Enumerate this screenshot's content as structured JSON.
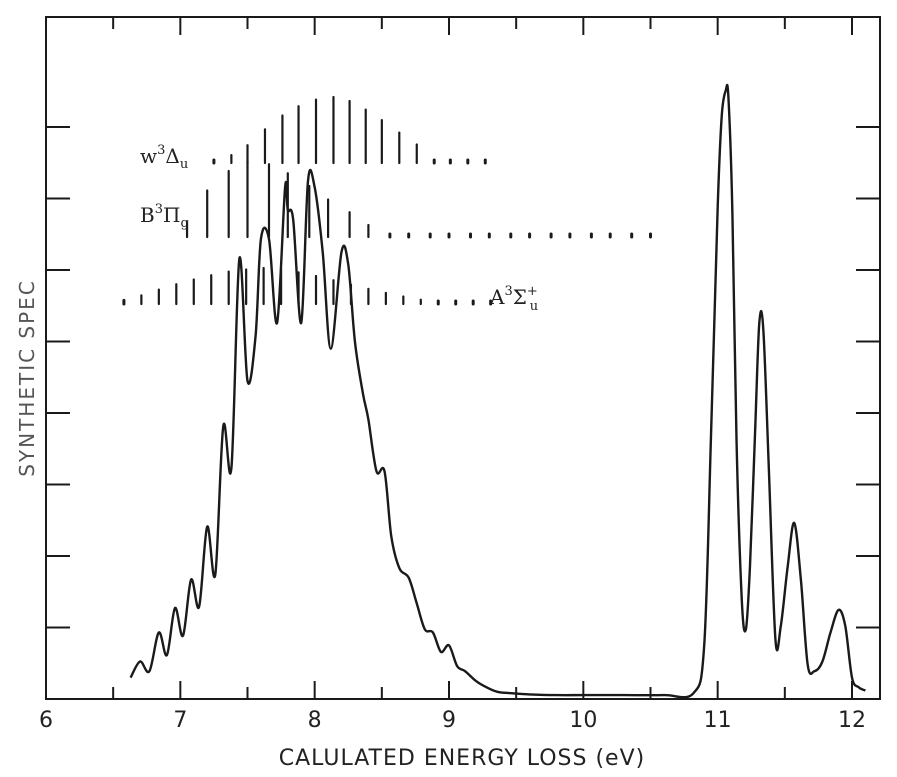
{
  "chart_data": {
    "type": "line",
    "title": "",
    "xlabel": "CALULATED ENERGY LOSS (eV)",
    "ylabel": "SYNTHETIC SPEC",
    "xlim": [
      6,
      12.2
    ],
    "ylim": [
      0,
      1
    ],
    "x_ticks": [
      "6",
      "7",
      "8",
      "9",
      "10",
      "11",
      "12"
    ],
    "grid": false,
    "color": "#1a1a1a",
    "series": [
      {
        "x": [
          6.63,
          6.7,
          6.77,
          6.84,
          6.9,
          6.96,
          7.02,
          7.08,
          7.14,
          7.2,
          7.26,
          7.32,
          7.38,
          7.44,
          7.5,
          7.56,
          7.6,
          7.66,
          7.72,
          7.78,
          7.8,
          7.84,
          7.9,
          7.95,
          8.0,
          8.06,
          8.12,
          8.2,
          8.25,
          8.3,
          8.36,
          8.4,
          8.46,
          8.52,
          8.57,
          8.63,
          8.7,
          8.76,
          8.82,
          8.88,
          8.94,
          9.0,
          9.06,
          9.12,
          9.2,
          9.28,
          9.36,
          9.45,
          9.6,
          9.8,
          10.0,
          10.3,
          10.6,
          10.82,
          10.9,
          10.95,
          11.0,
          11.03,
          11.06,
          11.08,
          11.11,
          11.14,
          11.18,
          11.21,
          11.24,
          11.28,
          11.31,
          11.34,
          11.38,
          11.43,
          11.47,
          11.52,
          11.57,
          11.62,
          11.67,
          11.72,
          11.78,
          11.84,
          11.9,
          11.95,
          12.0,
          12.05,
          12.1
        ],
        "y": [
          0.03,
          0.055,
          0.04,
          0.1,
          0.065,
          0.138,
          0.095,
          0.182,
          0.14,
          0.264,
          0.19,
          0.42,
          0.355,
          0.68,
          0.49,
          0.56,
          0.71,
          0.71,
          0.58,
          0.79,
          0.755,
          0.74,
          0.58,
          0.8,
          0.79,
          0.69,
          0.54,
          0.69,
          0.67,
          0.55,
          0.47,
          0.43,
          0.35,
          0.35,
          0.25,
          0.2,
          0.185,
          0.145,
          0.105,
          0.1,
          0.07,
          0.08,
          0.048,
          0.04,
          0.025,
          0.015,
          0.008,
          0.006,
          0.004,
          0.003,
          0.003,
          0.003,
          0.003,
          0.006,
          0.08,
          0.4,
          0.76,
          0.9,
          0.94,
          0.93,
          0.75,
          0.4,
          0.15,
          0.105,
          0.2,
          0.42,
          0.58,
          0.57,
          0.36,
          0.09,
          0.11,
          0.2,
          0.27,
          0.18,
          0.05,
          0.04,
          0.055,
          0.1,
          0.135,
          0.11,
          0.03,
          0.015,
          0.01
        ]
      }
    ],
    "progressions": [
      {
        "name": "w3Δu",
        "label_main": "w",
        "label_sup": "3",
        "label_symbol": "Δ",
        "label_sub": "u",
        "positions": [
          7.25,
          7.38,
          7.5,
          7.63,
          7.76,
          7.88,
          8.01,
          8.14,
          8.26,
          8.38,
          8.5,
          8.63,
          8.76,
          8.89,
          9.01,
          9.14,
          9.27
        ],
        "heights": [
          0.04,
          0.12,
          0.27,
          0.51,
          0.72,
          0.86,
          0.96,
          1.0,
          0.94,
          0.81,
          0.65,
          0.46,
          0.28,
          0.04,
          0.04,
          0.04,
          0.04
        ]
      },
      {
        "name": "B3Πg",
        "label_main": "B",
        "label_sup": "3",
        "label_symbol": "Π",
        "label_sub": "g",
        "positions": [
          7.05,
          7.2,
          7.36,
          7.5,
          7.66,
          7.8,
          7.96,
          8.1,
          8.26,
          8.4,
          8.56,
          8.7,
          8.86,
          9.0,
          9.16,
          9.3,
          9.46,
          9.6,
          9.76,
          9.9,
          10.06,
          10.2,
          10.36,
          10.5
        ],
        "heights": [
          0.2,
          0.62,
          0.88,
          1.0,
          0.97,
          0.85,
          0.68,
          0.5,
          0.33,
          0.16,
          0.04,
          0.04,
          0.04,
          0.04,
          0.04,
          0.04,
          0.04,
          0.04,
          0.04,
          0.04,
          0.04,
          0.04,
          0.04,
          0.04
        ]
      },
      {
        "name": "A3Σu+",
        "label_main": "A",
        "label_sup": "3",
        "label_symbol": "Σ",
        "label_sub": "u",
        "label_sup2": "+",
        "positions": [
          6.58,
          6.71,
          6.84,
          6.97,
          7.1,
          7.23,
          7.36,
          7.49,
          7.62,
          7.75,
          7.88,
          8.01,
          8.14,
          8.27,
          8.4,
          8.53,
          8.66,
          8.79,
          8.92,
          9.05,
          9.18,
          9.31
        ],
        "heights": [
          0.1,
          0.24,
          0.4,
          0.55,
          0.68,
          0.8,
          0.9,
          0.96,
          1.0,
          0.97,
          0.88,
          0.78,
          0.66,
          0.54,
          0.42,
          0.31,
          0.21,
          0.12,
          0.06,
          0.04,
          0.04,
          0.04
        ]
      }
    ]
  }
}
